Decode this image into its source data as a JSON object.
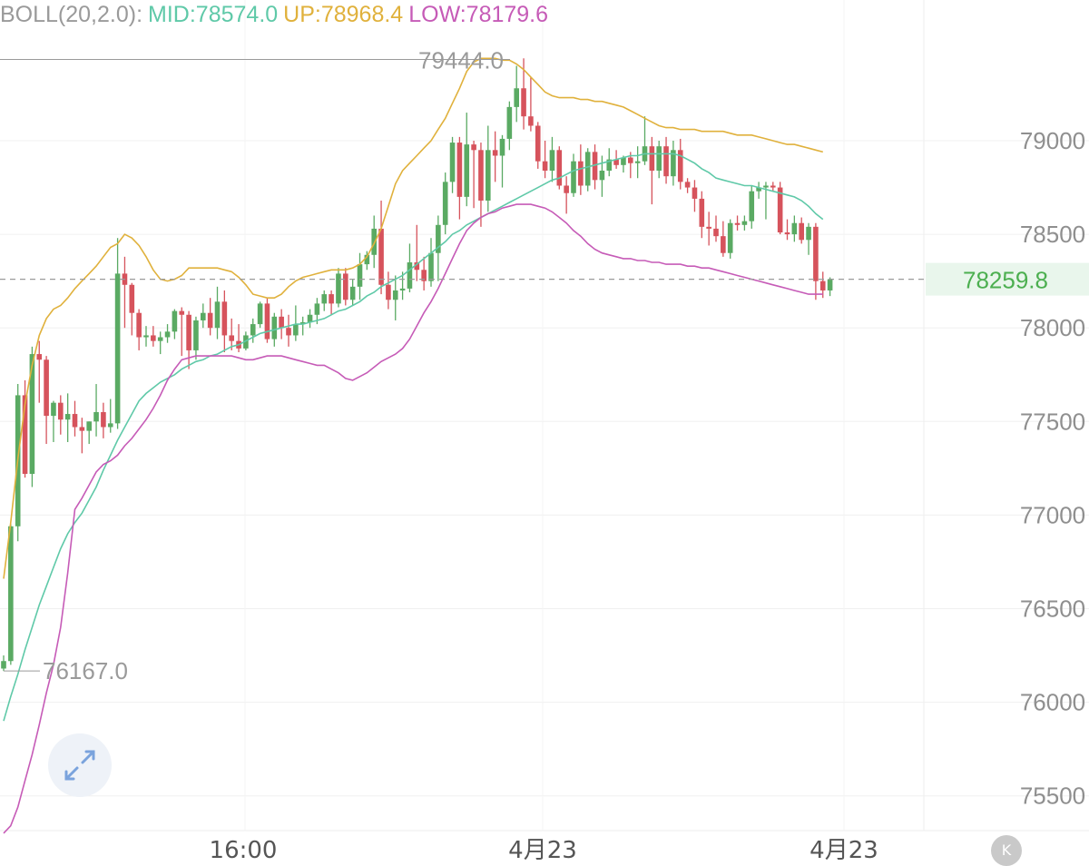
{
  "legend": {
    "boll": "BOLL(20,2.0):",
    "mid": "MID:78574.0",
    "up": "UP:78968.4",
    "low": "LOW:78179.6"
  },
  "colors": {
    "up_candle": "#5aaa63",
    "down_candle": "#d6535c",
    "mid_line": "#5fc9a8",
    "upper_band": "#e0b13c",
    "lower_band": "#c65bb7",
    "legend_label": "#9a9a9a",
    "axis_text": "#8f8f8f",
    "price_tag_text": "#4caf50",
    "price_tag_bg": "#e9f6ec"
  },
  "buttons": {
    "expand_icon": "expand-arrows-icon",
    "k_label": "K"
  },
  "chart_data": {
    "type": "candlestick",
    "indicator": "BOLL(20,2.0)",
    "y_axis": {
      "ticks": [
        "79000",
        "78500",
        "78000",
        "77500",
        "77000",
        "76500",
        "76000",
        "75500"
      ],
      "range": [
        75300,
        79700
      ],
      "position": "right"
    },
    "x_axis": {
      "ticks": [
        "16:00",
        "4月23",
        "4月23"
      ]
    },
    "current_price": "78259.8",
    "annotations": {
      "high": "79444.0",
      "low": "76167.0"
    },
    "candles": [
      [
        76180,
        76250,
        76167,
        76220
      ],
      [
        76220,
        76960,
        76200,
        76940
      ],
      [
        76940,
        77700,
        76860,
        77640
      ],
      [
        77640,
        77720,
        77200,
        77220
      ],
      [
        77220,
        77900,
        77150,
        77860
      ],
      [
        77860,
        77930,
        77600,
        77830
      ],
      [
        77830,
        77850,
        77380,
        77530
      ],
      [
        77530,
        77610,
        77390,
        77600
      ],
      [
        77600,
        77640,
        77430,
        77510
      ],
      [
        77510,
        77650,
        77390,
        77540
      ],
      [
        77540,
        77610,
        77420,
        77470
      ],
      [
        77470,
        77520,
        77330,
        77450
      ],
      [
        77450,
        77500,
        77380,
        77500
      ],
      [
        77500,
        77700,
        77420,
        77550
      ],
      [
        77550,
        77600,
        77410,
        77470
      ],
      [
        77470,
        77620,
        77440,
        77490
      ],
      [
        77490,
        78480,
        77460,
        78290
      ],
      [
        78290,
        78380,
        78000,
        78230
      ],
      [
        78230,
        78240,
        77960,
        78080
      ],
      [
        78080,
        78100,
        77880,
        77950
      ],
      [
        77950,
        78010,
        77900,
        77960
      ],
      [
        77960,
        78010,
        77900,
        77930
      ],
      [
        77930,
        77980,
        77860,
        77950
      ],
      [
        77950,
        78020,
        77920,
        77980
      ],
      [
        77980,
        78100,
        77940,
        78090
      ],
      [
        78090,
        78110,
        77850,
        78070
      ],
      [
        78070,
        78090,
        77780,
        77880
      ],
      [
        77880,
        78060,
        77830,
        78040
      ],
      [
        78040,
        78130,
        78000,
        78080
      ],
      [
        78080,
        78160,
        77960,
        78000
      ],
      [
        78000,
        78220,
        77940,
        78140
      ],
      [
        78140,
        78200,
        77870,
        77960
      ],
      [
        77960,
        78050,
        77880,
        77930
      ],
      [
        77930,
        78020,
        77870,
        77890
      ],
      [
        77890,
        77980,
        77880,
        77960
      ],
      [
        77960,
        78050,
        77920,
        78020
      ],
      [
        78020,
        78140,
        78000,
        78130
      ],
      [
        78130,
        78160,
        77920,
        77940
      ],
      [
        77940,
        78080,
        77900,
        78060
      ],
      [
        78060,
        78100,
        77940,
        78000
      ],
      [
        78000,
        78070,
        77900,
        77960
      ],
      [
        77960,
        78120,
        77930,
        78020
      ],
      [
        78020,
        78060,
        77960,
        78030
      ],
      [
        78030,
        78100,
        78000,
        78070
      ],
      [
        78070,
        78160,
        78020,
        78130
      ],
      [
        78130,
        78200,
        78090,
        78180
      ],
      [
        78180,
        78200,
        78070,
        78130
      ],
      [
        78130,
        78320,
        78110,
        78290
      ],
      [
        78290,
        78320,
        78120,
        78150
      ],
      [
        78150,
        78260,
        78120,
        78220
      ],
      [
        78220,
        78400,
        78150,
        78340
      ],
      [
        78340,
        78410,
        78310,
        78390
      ],
      [
        78390,
        78600,
        78320,
        78530
      ],
      [
        78530,
        78680,
        78180,
        78230
      ],
      [
        78230,
        78300,
        78100,
        78150
      ],
      [
        78150,
        78280,
        78040,
        78200
      ],
      [
        78200,
        78300,
        78150,
        78210
      ],
      [
        78210,
        78450,
        78190,
        78350
      ],
      [
        78350,
        78550,
        78250,
        78310
      ],
      [
        78310,
        78380,
        78200,
        78250
      ],
      [
        78250,
        78480,
        78220,
        78400
      ],
      [
        78400,
        78600,
        78250,
        78550
      ],
      [
        78550,
        78830,
        78500,
        78780
      ],
      [
        78780,
        79020,
        78720,
        78990
      ],
      [
        78990,
        79020,
        78580,
        78700
      ],
      [
        78700,
        79150,
        78650,
        78980
      ],
      [
        78980,
        79000,
        78640,
        78950
      ],
      [
        78950,
        78990,
        78540,
        78680
      ],
      [
        78680,
        79080,
        78620,
        78950
      ],
      [
        78950,
        79050,
        78780,
        78920
      ],
      [
        78920,
        79030,
        78750,
        79010
      ],
      [
        79010,
        79210,
        78950,
        79180
      ],
      [
        79180,
        79400,
        79100,
        79280
      ],
      [
        79280,
        79440,
        79060,
        79130
      ],
      [
        79130,
        79340,
        79050,
        79080
      ],
      [
        79080,
        79100,
        78850,
        78890
      ],
      [
        78890,
        79000,
        78800,
        78840
      ],
      [
        78840,
        79020,
        78780,
        78950
      ],
      [
        78950,
        78970,
        78740,
        78760
      ],
      [
        78760,
        78810,
        78610,
        78720
      ],
      [
        78720,
        78930,
        78700,
        78890
      ],
      [
        78890,
        78980,
        78710,
        78760
      ],
      [
        78760,
        78960,
        78730,
        78940
      ],
      [
        78940,
        78980,
        78740,
        78790
      ],
      [
        78790,
        78920,
        78700,
        78840
      ],
      [
        78840,
        78960,
        78810,
        78900
      ],
      [
        78900,
        78950,
        78850,
        78870
      ],
      [
        78870,
        78920,
        78830,
        78910
      ],
      [
        78910,
        78940,
        78800,
        78880
      ],
      [
        78880,
        78970,
        78800,
        78890
      ],
      [
        78890,
        79130,
        78870,
        78970
      ],
      [
        78970,
        79020,
        78660,
        78840
      ],
      [
        78840,
        79000,
        78800,
        78970
      ],
      [
        78970,
        79020,
        78770,
        78810
      ],
      [
        78810,
        79000,
        78760,
        78950
      ],
      [
        78950,
        79010,
        78740,
        78780
      ],
      [
        78780,
        78800,
        78720,
        78750
      ],
      [
        78750,
        78790,
        78620,
        78690
      ],
      [
        78690,
        78730,
        78480,
        78540
      ],
      [
        78540,
        78620,
        78440,
        78530
      ],
      [
        78530,
        78600,
        78460,
        78490
      ],
      [
        78490,
        78570,
        78380,
        78400
      ],
      [
        78400,
        78580,
        78370,
        78560
      ],
      [
        78560,
        78600,
        78520,
        78550
      ],
      [
        78550,
        78600,
        78520,
        78570
      ],
      [
        78570,
        78760,
        78530,
        78730
      ],
      [
        78730,
        78780,
        78690,
        78750
      ],
      [
        78750,
        78780,
        78580,
        78760
      ],
      [
        78760,
        78780,
        78730,
        78750
      ],
      [
        78750,
        78780,
        78500,
        78510
      ],
      [
        78510,
        78580,
        78470,
        78500
      ],
      [
        78500,
        78600,
        78460,
        78560
      ],
      [
        78560,
        78590,
        78450,
        78470
      ],
      [
        78470,
        78560,
        78390,
        78540
      ],
      [
        78540,
        78560,
        78150,
        78250
      ],
      [
        78250,
        78300,
        78160,
        78200
      ],
      [
        78200,
        78270,
        78170,
        78260
      ]
    ],
    "mid": [
      75900,
      76030,
      76150,
      76280,
      76400,
      76520,
      76620,
      76720,
      76820,
      76900,
      76960,
      77010,
      77080,
      77150,
      77240,
      77320,
      77400,
      77470,
      77540,
      77610,
      77650,
      77680,
      77710,
      77730,
      77750,
      77780,
      77800,
      77820,
      77830,
      77850,
      77860,
      77880,
      77900,
      77910,
      77930,
      77950,
      77970,
      77980,
      77990,
      78000,
      78010,
      78020,
      78020,
      78030,
      78040,
      78050,
      78070,
      78090,
      78100,
      78120,
      78140,
      78170,
      78190,
      78220,
      78240,
      78260,
      78280,
      78310,
      78340,
      78370,
      78400,
      78430,
      78460,
      78500,
      78520,
      78550,
      78570,
      78590,
      78610,
      78630,
      78650,
      78670,
      78690,
      78710,
      78730,
      78750,
      78770,
      78790,
      78800,
      78820,
      78840,
      78850,
      78860,
      78870,
      78880,
      78890,
      78900,
      78910,
      78920,
      78920,
      78930,
      78930,
      78930,
      78930,
      78930,
      78920,
      78900,
      78880,
      78850,
      78830,
      78800,
      78790,
      78780,
      78770,
      78760,
      78760,
      78750,
      78740,
      78730,
      78720,
      78710,
      78700,
      78680,
      78650,
      78610,
      78580
    ],
    "upper": [
      76660,
      76960,
      77300,
      77590,
      77800,
      77960,
      78050,
      78100,
      78120,
      78160,
      78210,
      78250,
      78290,
      78330,
      78380,
      78430,
      78450,
      78500,
      78480,
      78440,
      78380,
      78310,
      78260,
      78250,
      78260,
      78280,
      78320,
      78320,
      78320,
      78320,
      78320,
      78310,
      78300,
      78270,
      78230,
      78180,
      78170,
      78160,
      78160,
      78180,
      78220,
      78250,
      78270,
      78280,
      78290,
      78300,
      78310,
      78310,
      78310,
      78320,
      78340,
      78380,
      78450,
      78530,
      78650,
      78770,
      78840,
      78880,
      78920,
      78960,
      79000,
      79060,
      79120,
      79200,
      79280,
      79370,
      79420,
      79440,
      79440,
      79440,
      79430,
      79430,
      79410,
      79380,
      79340,
      79300,
      79260,
      79240,
      79230,
      79230,
      79230,
      79220,
      79220,
      79210,
      79210,
      79200,
      79190,
      79180,
      79160,
      79140,
      79120,
      79100,
      79080,
      79070,
      79070,
      79060,
      79060,
      79060,
      79050,
      79050,
      79050,
      79050,
      79040,
      79030,
      79030,
      79030,
      79020,
      79010,
      79000,
      78990,
      78980,
      78980,
      78970,
      78960,
      78950,
      78940
    ],
    "lower": [
      75300,
      75340,
      75440,
      75580,
      75720,
      75880,
      76050,
      76200,
      76400,
      76690,
      77030,
      77090,
      77160,
      77230,
      77270,
      77290,
      77320,
      77370,
      77410,
      77460,
      77510,
      77570,
      77640,
      77720,
      77780,
      77830,
      77840,
      77850,
      77850,
      77850,
      77850,
      77850,
      77850,
      77840,
      77830,
      77830,
      77840,
      77850,
      77850,
      77850,
      77840,
      77830,
      77820,
      77810,
      77800,
      77800,
      77780,
      77760,
      77730,
      77720,
      77740,
      77760,
      77790,
      77820,
      77840,
      77860,
      77890,
      77940,
      78010,
      78080,
      78140,
      78210,
      78290,
      78370,
      78450,
      78520,
      78560,
      78590,
      78610,
      78620,
      78640,
      78650,
      78660,
      78660,
      78660,
      78650,
      78640,
      78620,
      78590,
      78560,
      78520,
      78490,
      78450,
      78420,
      78400,
      78390,
      78380,
      78370,
      78370,
      78360,
      78360,
      78350,
      78350,
      78340,
      78340,
      78340,
      78330,
      78330,
      78320,
      78320,
      78310,
      78300,
      78290,
      78280,
      78270,
      78260,
      78250,
      78240,
      78230,
      78220,
      78210,
      78200,
      78190,
      78180,
      78180,
      78180
    ]
  }
}
